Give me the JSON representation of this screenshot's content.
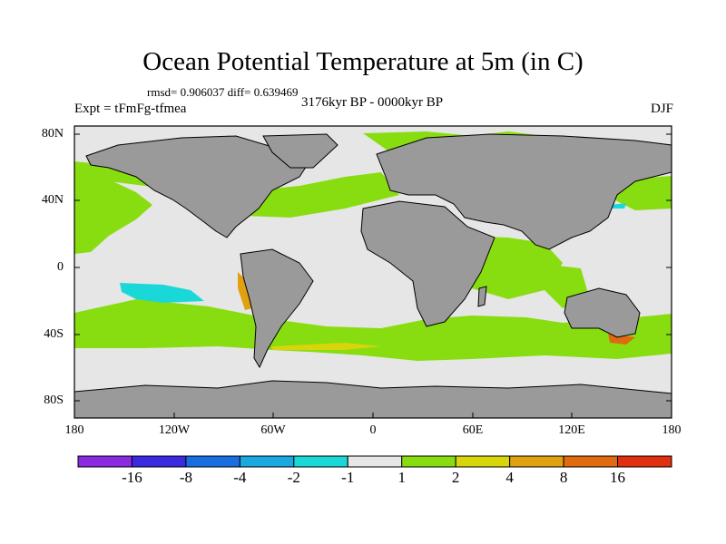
{
  "title": "Ocean Potential Temperature at 5m (in C)",
  "stats": "rmsd= 0.906037 diff= 0.639469",
  "period": "3176kyr BP - 0000kyr BP",
  "experiment": "Expt = tFmFg-tfmea",
  "season": "DJF",
  "lat_labels": [
    "80N",
    "40N",
    "0",
    "40S",
    "80S"
  ],
  "lon_labels": [
    "180",
    "120W",
    "60W",
    "0",
    "60E",
    "120E",
    "180"
  ],
  "colorbar": {
    "colors": [
      "#8a2be2",
      "#3a2be0",
      "#1a6fe0",
      "#1aa8e0",
      "#1ad8d8",
      "#e6e6e6",
      "#88dd11",
      "#d6d60a",
      "#e0a010",
      "#e06a10",
      "#e03010"
    ],
    "labels": [
      "-16",
      "-8",
      "-4",
      "-2",
      "-1",
      "1",
      "2",
      "4",
      "8",
      "16"
    ]
  },
  "colors": {
    "ocean_neutral": "#e6e6e6",
    "land": "#9a9a9a",
    "warm_1": "#88dd11",
    "warm_2": "#d6d60a",
    "warm_3": "#e0a010",
    "warm_4": "#e06a10",
    "cool_1": "#1ad8d8",
    "cool_2": "#1aa8e0"
  }
}
